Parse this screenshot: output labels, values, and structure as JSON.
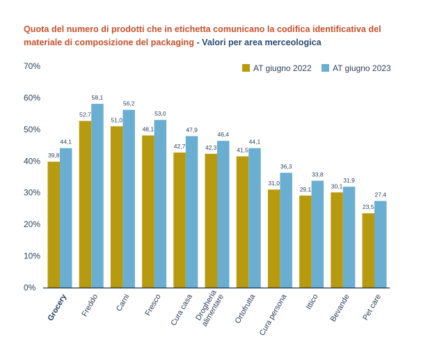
{
  "title": {
    "main": "Quota del numero di prodotti che in etichetta comunicano la codifica identificativa del materiale di composizione del packaging",
    "separator": " - ",
    "subtitle": "Valori per area merceologica"
  },
  "chart_data": {
    "type": "bar",
    "categories": [
      [
        "Grocery"
      ],
      [
        "Freddo"
      ],
      [
        "Carni"
      ],
      [
        "Fresco"
      ],
      [
        "Cura casa"
      ],
      [
        "Drogheria",
        "alimentare"
      ],
      [
        "Ortofrutta"
      ],
      [
        "Cura persona"
      ],
      [
        "Ittico"
      ],
      [
        "Bevande"
      ],
      [
        "Pet care"
      ]
    ],
    "series": [
      {
        "name": "AT giugno 2022",
        "color": "#b89a0e",
        "values": [
          39.8,
          52.7,
          51.0,
          48.1,
          42.7,
          42.3,
          41.5,
          31.0,
          29.1,
          30.1,
          23.5
        ],
        "labels": [
          "39,8",
          "52,7",
          "51,0",
          "48,1",
          "42,7",
          "42,3",
          "41,5",
          "31,0",
          "29,1",
          "30,1",
          "23,5"
        ]
      },
      {
        "name": "AT giugno 2023",
        "color": "#6aafd1",
        "values": [
          44.1,
          58.1,
          56.2,
          53.0,
          47.9,
          46.4,
          44.1,
          36.3,
          33.8,
          31.9,
          27.4
        ],
        "labels": [
          "44,1",
          "58,1",
          "56,2",
          "53,0",
          "47,9",
          "46,4",
          "44,1",
          "36,3",
          "33,8",
          "31,9",
          "27,4"
        ]
      }
    ],
    "ylim": [
      0,
      70
    ],
    "yticks": [
      0,
      10,
      20,
      30,
      40,
      50,
      60,
      70
    ],
    "ytick_labels": [
      "0%",
      "10%",
      "20%",
      "30%",
      "40%",
      "50%",
      "60%",
      "70%"
    ],
    "highlighted_category": "Grocery",
    "legend_position": "top-right",
    "grid": false
  }
}
